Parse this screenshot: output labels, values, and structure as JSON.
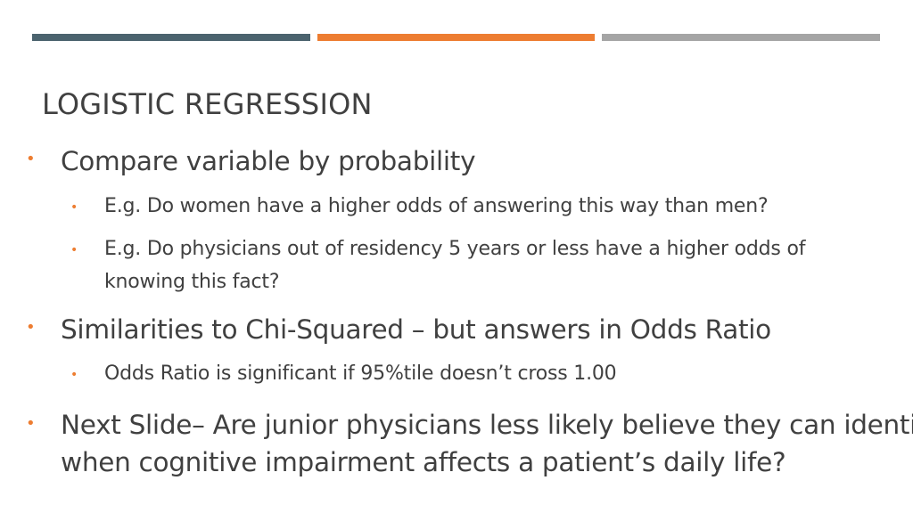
{
  "colors": {
    "bar_left": "#4b636e",
    "bar_middle": "#ed7d31",
    "bar_right": "#a5a5a5",
    "bullet": "#ed7d31",
    "text": "#404040"
  },
  "slide": {
    "title": "Logistic Regression",
    "bullets": [
      {
        "level": 1,
        "text": "Compare variable by probability"
      },
      {
        "level": 2,
        "text": "E.g. Do women have a higher odds of answering this way than men?"
      },
      {
        "level": 2,
        "line1": "E.g.  Do physicians out of residency 5 years or less have a higher odds of",
        "line2": "knowing this fact?"
      },
      {
        "level": 1,
        "text": "Similarities to Chi-Squared – but answers in Odds Ratio"
      },
      {
        "level": 2,
        "text": "Odds Ratio is significant if 95%tile doesn’t cross 1.00"
      },
      {
        "level": 1,
        "line1": "Next Slide– Are junior physicians less likely believe they can identify",
        "line2": "when cognitive impairment affects a patient’s daily life?"
      }
    ],
    "bullet_glyph": "•"
  }
}
